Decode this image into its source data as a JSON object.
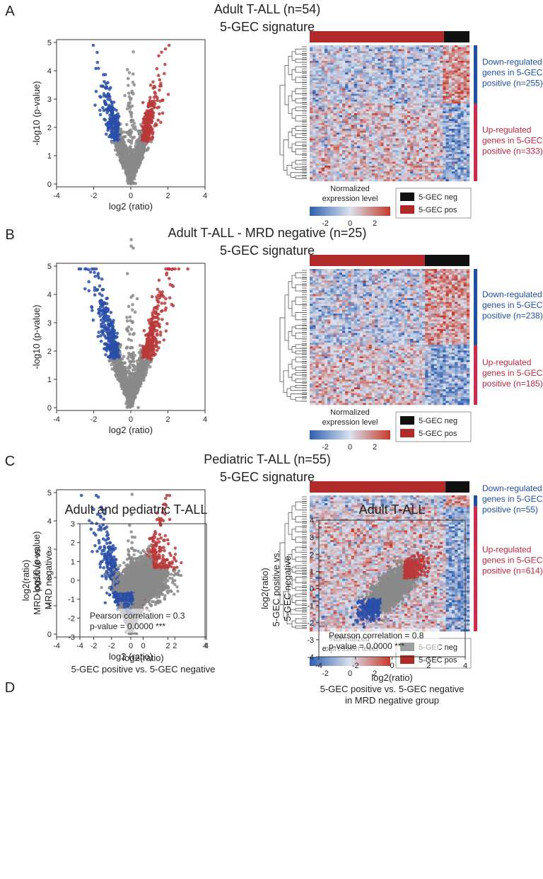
{
  "panels": [
    {
      "letter": "A",
      "title_lines": [
        "Adult T-ALL (n=54)",
        "5-GEC signature"
      ],
      "volcano": {
        "type": "scatter",
        "xlabel": "log2 (ratio)",
        "ylabel": "-log10 (p-value)",
        "xlim": [
          -4,
          4
        ],
        "ylim": [
          0,
          5
        ],
        "xticks": [
          "-4",
          "-2",
          "0",
          "2",
          "4"
        ],
        "yticks": [
          "0",
          "1",
          "2",
          "3",
          "4",
          "5"
        ],
        "series": [
          {
            "name": "not significant",
            "color": "#8a8a8a"
          },
          {
            "name": "down",
            "color": "#2a4fa8"
          },
          {
            "name": "up",
            "color": "#b83a3a"
          }
        ]
      },
      "heatmap": {
        "type": "heatmap",
        "pos_label": "5-GEC pos",
        "neg_label": "5-GEC neg",
        "pos_fraction": 0.84,
        "down_fraction": 0.43,
        "down_text": [
          "Down-regulated",
          "genes in 5-GEC",
          "positive (n=255)"
        ],
        "up_text": [
          "Up-regulated",
          "genes in 5-GEC",
          "positive (n=333)"
        ],
        "scale_title": [
          "Normalized",
          "expression level"
        ],
        "scale_ticks": [
          "-2",
          "0",
          "2"
        ]
      }
    },
    {
      "letter": "B",
      "title_lines": [
        "Adult T-ALL - MRD negative (n=25)",
        "5-GEC signature"
      ],
      "volcano": {
        "type": "scatter",
        "xlabel": "log2 (ratio)",
        "ylabel": "-log10 (p-value)",
        "xlim": [
          -4,
          4
        ],
        "ylim": [
          0,
          5
        ],
        "xticks": [
          "-4",
          "-2",
          "0",
          "2",
          "4"
        ],
        "yticks": [
          "0",
          "1",
          "2",
          "3",
          "4",
          "5"
        ],
        "series": [
          {
            "name": "not significant",
            "color": "#8a8a8a"
          },
          {
            "name": "down",
            "color": "#2a4fa8"
          },
          {
            "name": "up",
            "color": "#b83a3a"
          }
        ]
      },
      "heatmap": {
        "type": "heatmap",
        "pos_label": "5-GEC pos",
        "neg_label": "5-GEC neg",
        "pos_fraction": 0.72,
        "down_fraction": 0.56,
        "down_text": [
          "Down-regulated",
          "genes in 5-GEC",
          "positive (n=238)"
        ],
        "up_text": [
          "Up-regulated",
          "genes in 5-GEC",
          "positive (n=185)"
        ],
        "scale_title": [
          "Normalized",
          "expression level"
        ],
        "scale_ticks": [
          "-2",
          "0",
          "2"
        ]
      }
    },
    {
      "letter": "C",
      "title_lines": [
        "Pediatric T-ALL (n=55)",
        "5-GEC signature"
      ],
      "volcano": {
        "type": "scatter",
        "xlabel": "log2 (ratio)",
        "ylabel": "-log10 (p-value)",
        "xlim": [
          -4,
          4
        ],
        "ylim": [
          0,
          5
        ],
        "xticks": [
          "-4",
          "-2",
          "0",
          "2",
          "4"
        ],
        "yticks": [
          "0",
          "1",
          "2",
          "3",
          "4",
          "5"
        ],
        "series": [
          {
            "name": "not significant",
            "color": "#8a8a8a"
          },
          {
            "name": "down",
            "color": "#2a4fa8"
          },
          {
            "name": "up",
            "color": "#b83a3a"
          }
        ]
      },
      "heatmap": {
        "type": "heatmap",
        "pos_label": "5-GEC pos",
        "neg_label": "5-GEC neg",
        "pos_fraction": 0.85,
        "down_fraction": 0.08,
        "down_text": [
          "Down-regulated",
          "genes in 5-GEC",
          "positive (n=55)"
        ],
        "up_text": [
          "Up-regulated",
          "genes in 5-GEC",
          "positive (n=614)"
        ],
        "scale_title": [
          "Normalized",
          "expression level"
        ],
        "scale_ticks": [
          "-2",
          "0",
          "2"
        ]
      }
    }
  ],
  "panel_d": {
    "letter": "D",
    "plots": [
      {
        "type": "scatter",
        "title": "Adult and pediatric T-ALL",
        "xlim": [
          -4,
          4
        ],
        "ylim": [
          -3,
          3
        ],
        "xticks": [
          "-4",
          "-2",
          "0",
          "2",
          "4"
        ],
        "yticks": [
          "-3",
          "-2",
          "-1",
          "0",
          "1",
          "2",
          "3"
        ],
        "xlabel_lines": [
          "log2(ratio)",
          "5-GEC positive vs. 5-GEC negative"
        ],
        "ylabel_lines": [
          "log2(ratio)",
          "MRD positive vs.",
          "MRD negative"
        ],
        "annotation": [
          "Pearson correlation = 0.3",
          "p-value = 0.0000 ***"
        ],
        "pearson_r": 0.3
      },
      {
        "type": "scatter",
        "title": "Adult T-ALL",
        "xlim": [
          -4,
          4
        ],
        "ylim": [
          -4,
          4
        ],
        "xticks": [
          "-4",
          "-2",
          "0",
          "2",
          "4"
        ],
        "yticks": [
          "-4",
          "-3",
          "-2",
          "-1",
          "0",
          "1",
          "2",
          "3",
          "4"
        ],
        "xlabel_lines": [
          "log2(ratio)",
          "5-GEC positive vs. 5-GEC negative",
          "in MRD negative group"
        ],
        "ylabel_lines": [
          "log2(ratio)",
          "5-GEC positive vs.",
          "5-GEC negative"
        ],
        "annotation": [
          "Pearson correlation = 0.8",
          "p-value = 0.0000 ***"
        ],
        "pearson_r": 0.8
      }
    ]
  },
  "colors": {
    "gray": "#8a8a8a",
    "blue": "#2a4fa8",
    "red": "#b83a3a",
    "bar_pos": "#b02a2a",
    "bar_neg": "#111111",
    "side_blue": "#1b4fa8",
    "side_red": "#d0294a",
    "text_blue": "#1f4e9c",
    "text_red": "#b6283e",
    "heat_low": "#2f5fb0",
    "heat_mid": "#d9e1ee",
    "heat_high": "#c63a2a"
  }
}
